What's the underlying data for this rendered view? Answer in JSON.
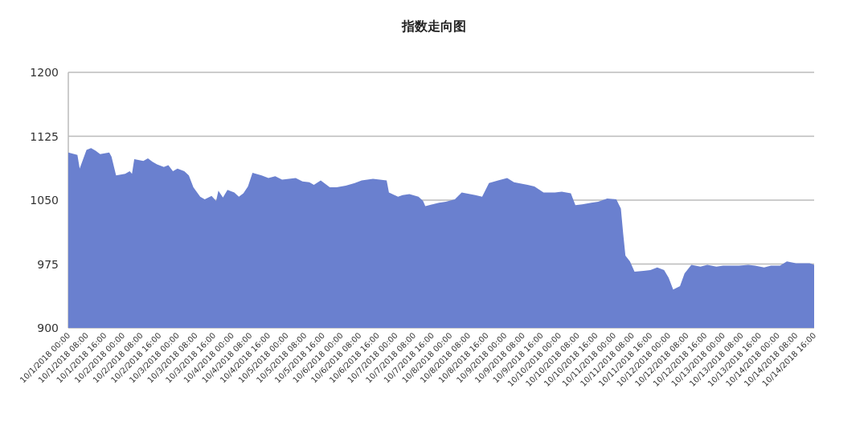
{
  "chart_data": {
    "type": "area",
    "title": "指数走向图",
    "x": [
      "2018-10-01T00:00",
      "2018-10-01T04:00",
      "2018-10-01T05:00",
      "2018-10-01T08:00",
      "2018-10-01T10:00",
      "2018-10-01T12:00",
      "2018-10-01T14:00",
      "2018-10-01T18:00",
      "2018-10-01T19:00",
      "2018-10-01T21:00",
      "2018-10-02T01:00",
      "2018-10-02T03:00",
      "2018-10-02T04:00",
      "2018-10-02T05:00",
      "2018-10-02T09:00",
      "2018-10-02T11:00",
      "2018-10-02T13:00",
      "2018-10-02T15:00",
      "2018-10-02T18:00",
      "2018-10-02T20:00",
      "2018-10-02T22:00",
      "2018-10-03T00:00",
      "2018-10-03T03:00",
      "2018-10-03T05:00",
      "2018-10-03T07:00",
      "2018-10-03T10:00",
      "2018-10-03T12:00",
      "2018-10-03T15:00",
      "2018-10-03T17:00",
      "2018-10-03T18:00",
      "2018-10-03T20:00",
      "2018-10-03T22:00",
      "2018-10-04T01:00",
      "2018-10-04T03:00",
      "2018-10-04T05:00",
      "2018-10-04T07:00",
      "2018-10-04T09:00",
      "2018-10-04T13:00",
      "2018-10-04T16:00",
      "2018-10-04T19:00",
      "2018-10-04T22:00",
      "2018-10-05T01:00",
      "2018-10-05T04:00",
      "2018-10-05T07:00",
      "2018-10-05T10:00",
      "2018-10-05T12:00",
      "2018-10-05T15:00",
      "2018-10-05T19:00",
      "2018-10-05T22:00",
      "2018-10-06T02:00",
      "2018-10-06T06:00",
      "2018-10-06T09:00",
      "2018-10-06T14:00",
      "2018-10-06T20:00",
      "2018-10-06T21:00",
      "2018-10-07T01:00",
      "2018-10-07T03:00",
      "2018-10-07T06:00",
      "2018-10-07T10:00",
      "2018-10-07T12:00",
      "2018-10-07T13:00",
      "2018-10-07T19:00",
      "2018-10-07T22:00",
      "2018-10-08T02:00",
      "2018-10-08T05:00",
      "2018-10-08T11:00",
      "2018-10-08T14:00",
      "2018-10-08T17:00",
      "2018-10-08T21:00",
      "2018-10-09T01:00",
      "2018-10-09T04:00",
      "2018-10-09T10:00",
      "2018-10-09T13:00",
      "2018-10-09T17:00",
      "2018-10-09T22:00",
      "2018-10-10T01:00",
      "2018-10-10T05:00",
      "2018-10-10T07:00",
      "2018-10-10T10:00",
      "2018-10-10T14:00",
      "2018-10-10T17:00",
      "2018-10-10T21:00",
      "2018-10-11T01:00",
      "2018-10-11T03:00",
      "2018-10-11T04:00",
      "2018-10-11T05:00",
      "2018-10-11T07:00",
      "2018-10-11T09:00",
      "2018-10-11T13:00",
      "2018-10-11T16:00",
      "2018-10-11T19:00",
      "2018-10-11T22:00",
      "2018-10-12T00:00",
      "2018-10-12T02:00",
      "2018-10-12T05:00",
      "2018-10-12T07:00",
      "2018-10-12T10:00",
      "2018-10-12T14:00",
      "2018-10-12T17:00",
      "2018-10-12T21:00",
      "2018-10-13T00:00",
      "2018-10-13T04:00",
      "2018-10-13T07:00",
      "2018-10-13T11:00",
      "2018-10-13T14:00",
      "2018-10-13T18:00",
      "2018-10-13T21:00",
      "2018-10-14T01:00",
      "2018-10-14T04:00",
      "2018-10-14T08:00",
      "2018-10-14T11:00",
      "2018-10-14T14:00",
      "2018-10-14T16:00"
    ],
    "series": [
      {
        "color": "#6a80cf",
        "values": [
          1106,
          1103,
          1087,
          1109,
          1111,
          1108,
          1104,
          1106,
          1101,
          1079,
          1081,
          1084,
          1081,
          1098,
          1096,
          1099,
          1095,
          1092,
          1089,
          1091,
          1084,
          1087,
          1084,
          1079,
          1065,
          1054,
          1051,
          1055,
          1049,
          1061,
          1053,
          1062,
          1059,
          1054,
          1058,
          1066,
          1082,
          1079,
          1076,
          1078,
          1074,
          1075,
          1076,
          1072,
          1071,
          1068,
          1073,
          1065,
          1065,
          1067,
          1070,
          1073,
          1075,
          1073,
          1059,
          1054,
          1056,
          1057,
          1054,
          1049,
          1043,
          1047,
          1048,
          1051,
          1059,
          1056,
          1054,
          1070,
          1073,
          1076,
          1071,
          1068,
          1066,
          1059,
          1059,
          1060,
          1058,
          1044,
          1045,
          1047,
          1048,
          1052,
          1051,
          1040,
          1011,
          985,
          978,
          966,
          967,
          968,
          971,
          968,
          959,
          945,
          949,
          964,
          974,
          972,
          974,
          972,
          973,
          973,
          973,
          974,
          973,
          971,
          973,
          973,
          978,
          976,
          976,
          976,
          974
        ]
      }
    ],
    "xlim": [
      "2018-10-01T00:00",
      "2018-10-14T16:00"
    ],
    "xticks": [
      {
        "value": "2018-10-01T00:00",
        "label": "10/1/2018 00:00"
      },
      {
        "value": "2018-10-01T08:00",
        "label": "10/1/2018 08:00"
      },
      {
        "value": "2018-10-01T16:00",
        "label": "10/1/2018 16:00"
      },
      {
        "value": "2018-10-02T00:00",
        "label": "10/2/2018 00:00"
      },
      {
        "value": "2018-10-02T08:00",
        "label": "10/2/2018 08:00"
      },
      {
        "value": "2018-10-02T16:00",
        "label": "10/2/2018 16:00"
      },
      {
        "value": "2018-10-03T00:00",
        "label": "10/3/2018 00:00"
      },
      {
        "value": "2018-10-03T08:00",
        "label": "10/3/2018 08:00"
      },
      {
        "value": "2018-10-03T16:00",
        "label": "10/3/2018 16:00"
      },
      {
        "value": "2018-10-04T00:00",
        "label": "10/4/2018 00:00"
      },
      {
        "value": "2018-10-04T08:00",
        "label": "10/4/2018 08:00"
      },
      {
        "value": "2018-10-04T16:00",
        "label": "10/4/2018 16:00"
      },
      {
        "value": "2018-10-05T00:00",
        "label": "10/5/2018 00:00"
      },
      {
        "value": "2018-10-05T08:00",
        "label": "10/5/2018 08:00"
      },
      {
        "value": "2018-10-05T16:00",
        "label": "10/5/2018 16:00"
      },
      {
        "value": "2018-10-06T00:00",
        "label": "10/6/2018 00:00"
      },
      {
        "value": "2018-10-06T08:00",
        "label": "10/6/2018 08:00"
      },
      {
        "value": "2018-10-06T16:00",
        "label": "10/6/2018 16:00"
      },
      {
        "value": "2018-10-07T00:00",
        "label": "10/7/2018 00:00"
      },
      {
        "value": "2018-10-07T08:00",
        "label": "10/7/2018 08:00"
      },
      {
        "value": "2018-10-07T16:00",
        "label": "10/7/2018 16:00"
      },
      {
        "value": "2018-10-08T00:00",
        "label": "10/8/2018 00:00"
      },
      {
        "value": "2018-10-08T08:00",
        "label": "10/8/2018 08:00"
      },
      {
        "value": "2018-10-08T16:00",
        "label": "10/8/2018 16:00"
      },
      {
        "value": "2018-10-09T00:00",
        "label": "10/9/2018 00:00"
      },
      {
        "value": "2018-10-09T08:00",
        "label": "10/9/2018 08:00"
      },
      {
        "value": "2018-10-09T16:00",
        "label": "10/9/2018 16:00"
      },
      {
        "value": "2018-10-10T00:00",
        "label": "10/10/2018 00:00"
      },
      {
        "value": "2018-10-10T08:00",
        "label": "10/10/2018 08:00"
      },
      {
        "value": "2018-10-10T16:00",
        "label": "10/10/2018 16:00"
      },
      {
        "value": "2018-10-11T00:00",
        "label": "10/11/2018 00:00"
      },
      {
        "value": "2018-10-11T08:00",
        "label": "10/11/2018 08:00"
      },
      {
        "value": "2018-10-11T16:00",
        "label": "10/11/2018 16:00"
      },
      {
        "value": "2018-10-12T00:00",
        "label": "10/12/2018 00:00"
      },
      {
        "value": "2018-10-12T08:00",
        "label": "10/12/2018 08:00"
      },
      {
        "value": "2018-10-12T16:00",
        "label": "10/12/2018 16:00"
      },
      {
        "value": "2018-10-13T00:00",
        "label": "10/13/2018 00:00"
      },
      {
        "value": "2018-10-13T08:00",
        "label": "10/13/2018 08:00"
      },
      {
        "value": "2018-10-13T16:00",
        "label": "10/13/2018 16:00"
      },
      {
        "value": "2018-10-14T00:00",
        "label": "10/14/2018 00:00"
      },
      {
        "value": "2018-10-14T08:00",
        "label": "10/14/2018 08:00"
      },
      {
        "value": "2018-10-14T16:00",
        "label": "10/14/2018 16:00"
      }
    ],
    "ylim": [
      900,
      1200
    ],
    "yticks": [
      900,
      975,
      1050,
      1125,
      1200
    ],
    "grid": "y"
  }
}
